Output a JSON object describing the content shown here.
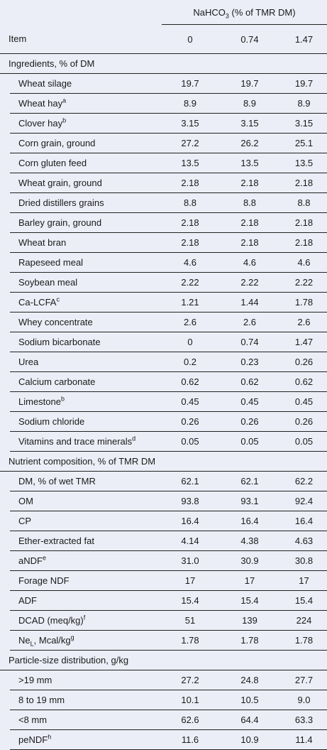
{
  "header": {
    "group_label": [
      {
        "text": "NaHCO"
      },
      {
        "text": "3",
        "style": "sub"
      },
      {
        "text": " (% of TMR DM)"
      }
    ],
    "item": "Item",
    "levels": [
      "0",
      "0.74",
      "1.47"
    ]
  },
  "sections": [
    {
      "title": "Ingredients, % of DM",
      "rows": [
        {
          "label": [
            {
              "text": "Wheat silage"
            }
          ],
          "values": [
            "19.7",
            "19.7",
            "19.7"
          ]
        },
        {
          "label": [
            {
              "text": "Wheat hay"
            },
            {
              "text": "a",
              "style": "sup"
            }
          ],
          "values": [
            "8.9",
            "8.9",
            "8.9"
          ]
        },
        {
          "label": [
            {
              "text": "Clover hay"
            },
            {
              "text": "b",
              "style": "sup"
            }
          ],
          "values": [
            "3.15",
            "3.15",
            "3.15"
          ]
        },
        {
          "label": [
            {
              "text": "Corn grain, ground"
            }
          ],
          "values": [
            "27.2",
            "26.2",
            "25.1"
          ]
        },
        {
          "label": [
            {
              "text": "Corn gluten feed"
            }
          ],
          "values": [
            "13.5",
            "13.5",
            "13.5"
          ]
        },
        {
          "label": [
            {
              "text": "Wheat grain, ground"
            }
          ],
          "values": [
            "2.18",
            "2.18",
            "2.18"
          ]
        },
        {
          "label": [
            {
              "text": "Dried distillers grains"
            }
          ],
          "values": [
            "8.8",
            "8.8",
            "8.8"
          ]
        },
        {
          "label": [
            {
              "text": "Barley grain, ground"
            }
          ],
          "values": [
            "2.18",
            "2.18",
            "2.18"
          ]
        },
        {
          "label": [
            {
              "text": "Wheat bran"
            }
          ],
          "values": [
            "2.18",
            "2.18",
            "2.18"
          ]
        },
        {
          "label": [
            {
              "text": "Rapeseed meal"
            }
          ],
          "values": [
            "4.6",
            "4.6",
            "4.6"
          ]
        },
        {
          "label": [
            {
              "text": "Soybean meal"
            }
          ],
          "values": [
            "2.22",
            "2.22",
            "2.22"
          ]
        },
        {
          "label": [
            {
              "text": "Ca-LCFA"
            },
            {
              "text": "c",
              "style": "sup"
            }
          ],
          "values": [
            "1.21",
            "1.44",
            "1.78"
          ]
        },
        {
          "label": [
            {
              "text": "Whey concentrate"
            }
          ],
          "values": [
            "2.6",
            "2.6",
            "2.6"
          ]
        },
        {
          "label": [
            {
              "text": "Sodium bicarbonate"
            }
          ],
          "values": [
            "0",
            "0.74",
            "1.47"
          ]
        },
        {
          "label": [
            {
              "text": "Urea"
            }
          ],
          "values": [
            "0.2",
            "0.23",
            "0.26"
          ]
        },
        {
          "label": [
            {
              "text": "Calcium carbonate"
            }
          ],
          "values": [
            "0.62",
            "0.62",
            "0.62"
          ]
        },
        {
          "label": [
            {
              "text": "Limestone"
            },
            {
              "text": "b",
              "style": "sup"
            }
          ],
          "values": [
            "0.45",
            "0.45",
            "0.45"
          ]
        },
        {
          "label": [
            {
              "text": "Sodium chloride"
            }
          ],
          "values": [
            "0.26",
            "0.26",
            "0.26"
          ]
        },
        {
          "label": [
            {
              "text": "Vitamins and trace minerals"
            },
            {
              "text": "d",
              "style": "sup"
            }
          ],
          "values": [
            "0.05",
            "0.05",
            "0.05"
          ]
        }
      ]
    },
    {
      "title": "Nutrient composition, % of TMR DM",
      "rows": [
        {
          "label": [
            {
              "text": "DM, % of wet TMR"
            }
          ],
          "values": [
            "62.1",
            "62.1",
            "62.2"
          ]
        },
        {
          "label": [
            {
              "text": "OM"
            }
          ],
          "values": [
            "93.8",
            "93.1",
            "92.4"
          ]
        },
        {
          "label": [
            {
              "text": "CP"
            }
          ],
          "values": [
            "16.4",
            "16.4",
            "16.4"
          ]
        },
        {
          "label": [
            {
              "text": "Ether-extracted fat"
            }
          ],
          "values": [
            "4.14",
            "4.38",
            "4.63"
          ]
        },
        {
          "label": [
            {
              "text": "aNDF"
            },
            {
              "text": "e",
              "style": "sup"
            }
          ],
          "values": [
            "31.0",
            "30.9",
            "30.8"
          ]
        },
        {
          "label": [
            {
              "text": "Forage NDF"
            }
          ],
          "values": [
            "17",
            "17",
            "17"
          ]
        },
        {
          "label": [
            {
              "text": "ADF"
            }
          ],
          "values": [
            "15.4",
            "15.4",
            "15.4"
          ]
        },
        {
          "label": [
            {
              "text": "DCAD (meq/kg)"
            },
            {
              "text": "f",
              "style": "sup"
            }
          ],
          "values": [
            "51",
            "139",
            "224"
          ]
        },
        {
          "label": [
            {
              "text": "Ne"
            },
            {
              "text": "L",
              "style": "sub"
            },
            {
              "text": ", Mcal/kg"
            },
            {
              "text": "g",
              "style": "sup"
            }
          ],
          "values": [
            "1.78",
            "1.78",
            "1.78"
          ]
        }
      ]
    },
    {
      "title": "Particle-size distribution, g/kg",
      "rows": [
        {
          "label": [
            {
              "text": ">19 mm"
            }
          ],
          "values": [
            "27.2",
            "24.8",
            "27.7"
          ]
        },
        {
          "label": [
            {
              "text": "8 to 19 mm"
            }
          ],
          "values": [
            "10.1",
            "10.5",
            "9.0"
          ]
        },
        {
          "label": [
            {
              "text": "<8 mm"
            }
          ],
          "values": [
            "62.6",
            "64.4",
            "63.3"
          ]
        },
        {
          "label": [
            {
              "text": "peNDF"
            },
            {
              "text": "h",
              "style": "sup"
            }
          ],
          "values": [
            "11.6",
            "10.9",
            "11.4"
          ]
        }
      ]
    }
  ]
}
